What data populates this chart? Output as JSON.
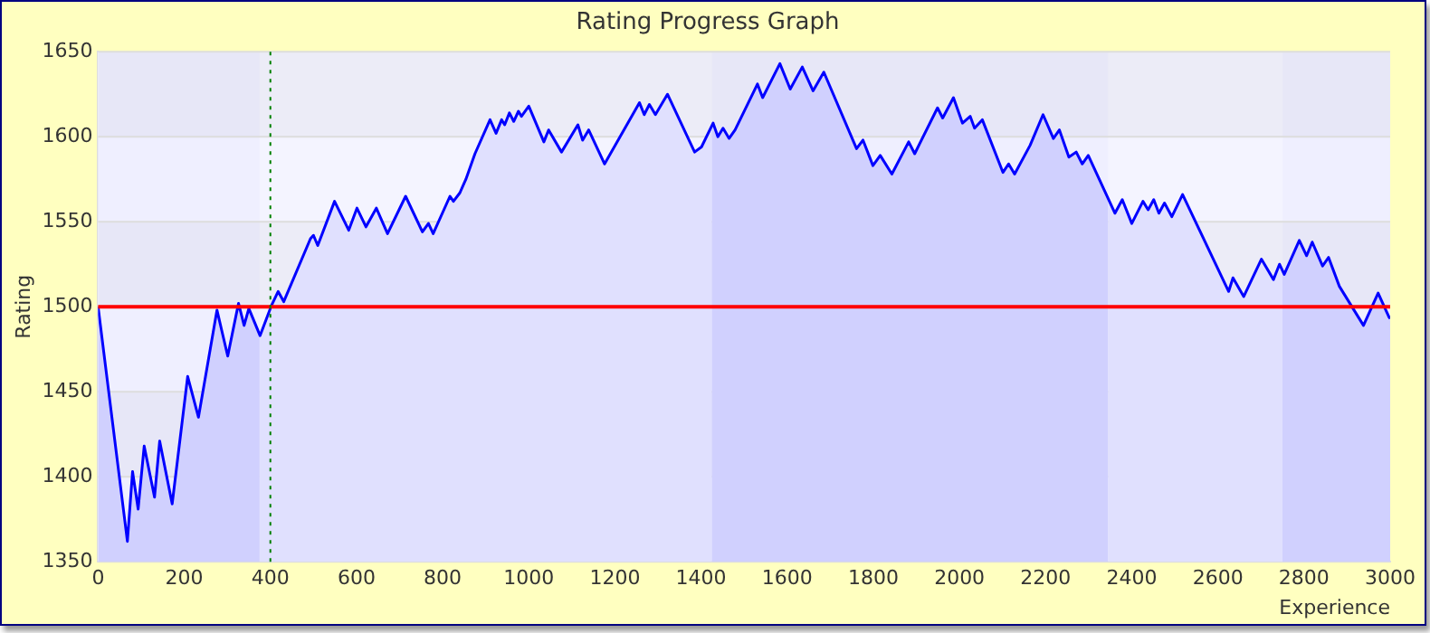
{
  "chart_data": {
    "type": "area",
    "title": "Rating Progress Graph",
    "xlabel": "Experience",
    "ylabel": "Rating",
    "x": [
      0,
      68,
      80,
      93,
      107,
      131,
      143,
      172,
      208,
      233,
      276,
      301,
      326,
      339,
      350,
      376,
      403,
      418,
      431,
      493,
      500,
      510,
      549,
      582,
      601,
      622,
      646,
      672,
      714,
      753,
      767,
      778,
      817,
      825,
      840,
      854,
      875,
      910,
      924,
      937,
      944,
      955,
      965,
      976,
      983,
      1000,
      1035,
      1046,
      1076,
      1114,
      1125,
      1139,
      1176,
      1257,
      1268,
      1280,
      1294,
      1322,
      1385,
      1401,
      1428,
      1439,
      1451,
      1465,
      1479,
      1531,
      1543,
      1583,
      1607,
      1635,
      1660,
      1685,
      1761,
      1776,
      1799,
      1816,
      1843,
      1882,
      1896,
      1949,
      1961,
      1986,
      2007,
      2025,
      2035,
      2053,
      2101,
      2114,
      2128,
      2164,
      2194,
      2218,
      2232,
      2254,
      2271,
      2285,
      2299,
      2361,
      2378,
      2400,
      2426,
      2438,
      2451,
      2463,
      2476,
      2493,
      2518,
      2625,
      2635,
      2660,
      2701,
      2729,
      2743,
      2754,
      2789,
      2806,
      2819,
      2843,
      2857,
      2882,
      2938,
      2972,
      2997,
      3000
    ],
    "series": [
      {
        "color": "#0000ff",
        "values": [
          1500,
          1362,
          1403,
          1381,
          1418,
          1388,
          1421,
          1384,
          1459,
          1435,
          1498,
          1471,
          1502,
          1489,
          1499,
          1483,
          1501,
          1509,
          1503,
          1540,
          1542,
          1536,
          1562,
          1545,
          1558,
          1547,
          1558,
          1543,
          1565,
          1544,
          1549,
          1543,
          1565,
          1562,
          1567,
          1575,
          1590,
          1610,
          1602,
          1610,
          1607,
          1614,
          1609,
          1615,
          1612,
          1618,
          1597,
          1604,
          1591,
          1607,
          1598,
          1604,
          1584,
          1620,
          1613,
          1619,
          1613,
          1625,
          1591,
          1594,
          1608,
          1600,
          1605,
          1599,
          1604,
          1631,
          1623,
          1643,
          1628,
          1641,
          1627,
          1638,
          1593,
          1598,
          1583,
          1589,
          1578,
          1597,
          1590,
          1617,
          1611,
          1623,
          1608,
          1612,
          1605,
          1610,
          1579,
          1584,
          1578,
          1595,
          1613,
          1599,
          1604,
          1588,
          1591,
          1584,
          1589,
          1555,
          1563,
          1549,
          1562,
          1557,
          1563,
          1555,
          1561,
          1553,
          1566,
          1509,
          1517,
          1506,
          1528,
          1516,
          1525,
          1519,
          1539,
          1530,
          1538,
          1524,
          1529,
          1512,
          1489,
          1508,
          1494,
          1493
        ]
      }
    ],
    "xlim": [
      0,
      3000
    ],
    "xticks": [
      0,
      200,
      400,
      600,
      800,
      1000,
      1200,
      1400,
      1600,
      1800,
      2000,
      2200,
      2400,
      2600,
      2800,
      3000
    ],
    "ylim": [
      1350,
      1650
    ],
    "yticks": [
      1350,
      1400,
      1450,
      1500,
      1550,
      1600,
      1650
    ],
    "grid": "y",
    "legend": false,
    "ref_lines": [
      {
        "axis": "y",
        "value": 1500,
        "color": "#ff0000",
        "line_style": "solid"
      },
      {
        "axis": "x",
        "value": 400,
        "color": "#008000",
        "line_style": "dotted"
      }
    ],
    "bands": [
      {
        "axis": "y",
        "from": 1600,
        "to": 1650,
        "color": "#f3f3f3"
      },
      {
        "axis": "y",
        "from": 1500,
        "to": 1550,
        "color": "#f3f3f3"
      },
      {
        "axis": "y",
        "from": 1400,
        "to": 1450,
        "color": "#f3f3f3"
      },
      {
        "axis": "x",
        "from": 0,
        "to": 375,
        "color": "#d0d0fe"
      },
      {
        "axis": "x",
        "from": 375,
        "to": 1425,
        "color": "#e0e0fe"
      },
      {
        "axis": "x",
        "from": 1425,
        "to": 2345,
        "color": "#d0d0fe"
      },
      {
        "axis": "x",
        "from": 2345,
        "to": 2750,
        "color": "#e0e0fe"
      },
      {
        "axis": "x",
        "from": 2750,
        "to": 3000,
        "color": "#d0d0fe"
      }
    ]
  }
}
